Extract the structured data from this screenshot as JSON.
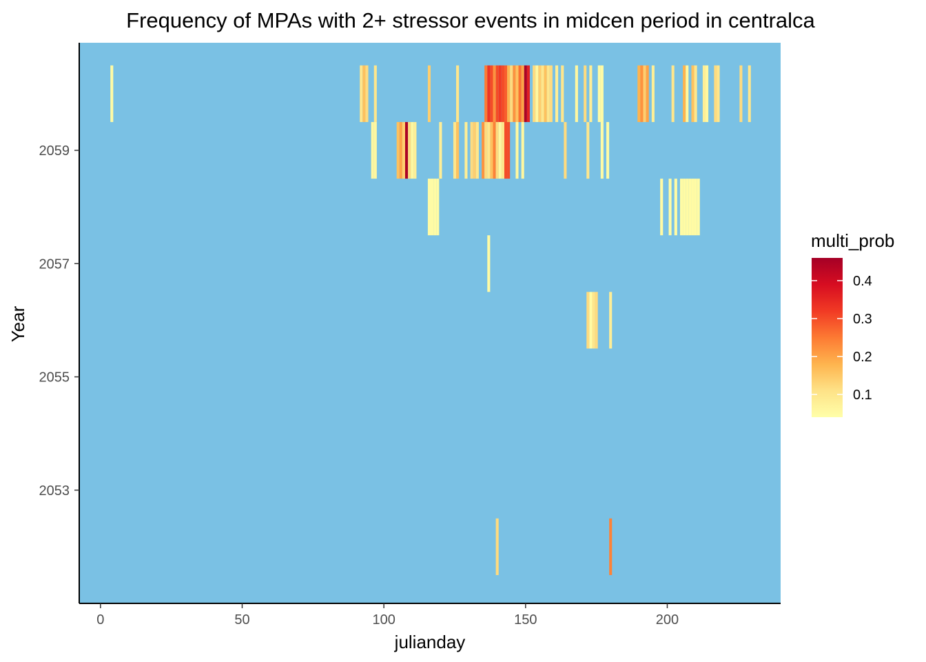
{
  "chart_data": {
    "type": "heatmap",
    "title": "Frequency of MPAs with 2+ stressor events in midcen period in centralca",
    "xlabel": "julianday",
    "ylabel": "Year",
    "xlim": [
      -7.5,
      240
    ],
    "ylim": [
      2051,
      2060.9
    ],
    "x_ticks": [
      0,
      50,
      100,
      150,
      200
    ],
    "y_ticks": [
      2053,
      2055,
      2057,
      2059
    ],
    "background_color": "#7AC1E4",
    "legend": {
      "title": "multi_prob",
      "position": "right",
      "range": [
        0.04,
        0.46
      ],
      "ticks": [
        0.1,
        0.2,
        0.3,
        0.4
      ],
      "colors": [
        "#FFFFA9",
        "#FEE287",
        "#FEB44E",
        "#FD7A33",
        "#F13A24",
        "#D70D21",
        "#A50026"
      ]
    },
    "years": [
      {
        "year": 2060,
        "cells": [
          {
            "day": 4,
            "value": 0.05
          },
          {
            "day": 92,
            "value": 0.1
          },
          {
            "day": 93,
            "value": 0.16
          },
          {
            "day": 94,
            "value": 0.12
          },
          {
            "day": 97,
            "value": 0.1
          },
          {
            "day": 116,
            "value": 0.14
          },
          {
            "day": 126,
            "value": 0.1
          },
          {
            "day": 136,
            "value": 0.25
          },
          {
            "day": 137,
            "value": 0.33
          },
          {
            "day": 138,
            "value": 0.3
          },
          {
            "day": 139,
            "value": 0.22
          },
          {
            "day": 140,
            "value": 0.3
          },
          {
            "day": 141,
            "value": 0.32
          },
          {
            "day": 142,
            "value": 0.3
          },
          {
            "day": 143,
            "value": 0.28
          },
          {
            "day": 144,
            "value": 0.18
          },
          {
            "day": 145,
            "value": 0.12
          },
          {
            "day": 146,
            "value": 0.22
          },
          {
            "day": 147,
            "value": 0.16
          },
          {
            "day": 148,
            "value": 0.26
          },
          {
            "day": 149,
            "value": 0.2
          },
          {
            "day": 150,
            "value": 0.45
          },
          {
            "day": 151,
            "value": 0.36
          },
          {
            "day": 153,
            "value": 0.12
          },
          {
            "day": 154,
            "value": 0.06
          },
          {
            "day": 155,
            "value": 0.14
          },
          {
            "day": 156,
            "value": 0.1
          },
          {
            "day": 157,
            "value": 0.16
          },
          {
            "day": 158,
            "value": 0.1
          },
          {
            "day": 159,
            "value": 0.12
          },
          {
            "day": 161,
            "value": 0.08
          },
          {
            "day": 163,
            "value": 0.1
          },
          {
            "day": 168,
            "value": 0.06
          },
          {
            "day": 171,
            "value": 0.12
          },
          {
            "day": 173,
            "value": 0.08
          },
          {
            "day": 176,
            "value": 0.05
          },
          {
            "day": 177,
            "value": 0.05
          },
          {
            "day": 190,
            "value": 0.18
          },
          {
            "day": 191,
            "value": 0.22
          },
          {
            "day": 192,
            "value": 0.14
          },
          {
            "day": 193,
            "value": 0.2
          },
          {
            "day": 195,
            "value": 0.08
          },
          {
            "day": 202,
            "value": 0.1
          },
          {
            "day": 206,
            "value": 0.18
          },
          {
            "day": 207,
            "value": 0.06
          },
          {
            "day": 209,
            "value": 0.16
          },
          {
            "day": 210,
            "value": 0.1
          },
          {
            "day": 213,
            "value": 0.08
          },
          {
            "day": 214,
            "value": 0.06
          },
          {
            "day": 217,
            "value": 0.12
          },
          {
            "day": 218,
            "value": 0.1
          },
          {
            "day": 226,
            "value": 0.12
          },
          {
            "day": 229,
            "value": 0.1
          }
        ]
      },
      {
        "year": 2059,
        "cells": [
          {
            "day": 96,
            "value": 0.06
          },
          {
            "day": 97,
            "value": 0.06
          },
          {
            "day": 105,
            "value": 0.16
          },
          {
            "day": 106,
            "value": 0.2
          },
          {
            "day": 107,
            "value": 0.14
          },
          {
            "day": 108,
            "value": 0.45
          },
          {
            "day": 109,
            "value": 0.12
          },
          {
            "day": 110,
            "value": 0.06
          },
          {
            "day": 111,
            "value": 0.08
          },
          {
            "day": 120,
            "value": 0.08
          },
          {
            "day": 125,
            "value": 0.1
          },
          {
            "day": 126,
            "value": 0.16
          },
          {
            "day": 129,
            "value": 0.08
          },
          {
            "day": 131,
            "value": 0.12
          },
          {
            "day": 132,
            "value": 0.14
          },
          {
            "day": 133,
            "value": 0.1
          },
          {
            "day": 135,
            "value": 0.22
          },
          {
            "day": 136,
            "value": 0.12
          },
          {
            "day": 137,
            "value": 0.1
          },
          {
            "day": 138,
            "value": 0.16
          },
          {
            "day": 139,
            "value": 0.24
          },
          {
            "day": 140,
            "value": 0.12
          },
          {
            "day": 141,
            "value": 0.06
          },
          {
            "day": 142,
            "value": 0.1
          },
          {
            "day": 143,
            "value": 0.3
          },
          {
            "day": 144,
            "value": 0.3
          },
          {
            "day": 147,
            "value": 0.06
          },
          {
            "day": 149,
            "value": 0.06
          },
          {
            "day": 164,
            "value": 0.12
          },
          {
            "day": 172,
            "value": 0.1
          },
          {
            "day": 177,
            "value": 0.05
          },
          {
            "day": 179,
            "value": 0.05
          }
        ]
      },
      {
        "year": 2058,
        "cells": [
          {
            "day": 116,
            "value": 0.05
          },
          {
            "day": 117,
            "value": 0.05
          },
          {
            "day": 118,
            "value": 0.05
          },
          {
            "day": 119,
            "value": 0.05
          },
          {
            "day": 198,
            "value": 0.05
          },
          {
            "day": 201,
            "value": 0.05
          },
          {
            "day": 203,
            "value": 0.05
          },
          {
            "day": 205,
            "value": 0.05
          },
          {
            "day": 206,
            "value": 0.05
          },
          {
            "day": 207,
            "value": 0.05
          },
          {
            "day": 208,
            "value": 0.05
          },
          {
            "day": 209,
            "value": 0.05
          },
          {
            "day": 210,
            "value": 0.05
          },
          {
            "day": 211,
            "value": 0.05
          }
        ]
      },
      {
        "year": 2057,
        "cells": [
          {
            "day": 137,
            "value": 0.05
          }
        ]
      },
      {
        "year": 2056,
        "cells": [
          {
            "day": 172,
            "value": 0.12
          },
          {
            "day": 173,
            "value": 0.05
          },
          {
            "day": 174,
            "value": 0.1
          },
          {
            "day": 175,
            "value": 0.12
          },
          {
            "day": 180,
            "value": 0.08
          }
        ]
      },
      {
        "year": 2052,
        "cells": [
          {
            "day": 140,
            "value": 0.12
          },
          {
            "day": 180,
            "value": 0.24
          }
        ]
      }
    ]
  }
}
